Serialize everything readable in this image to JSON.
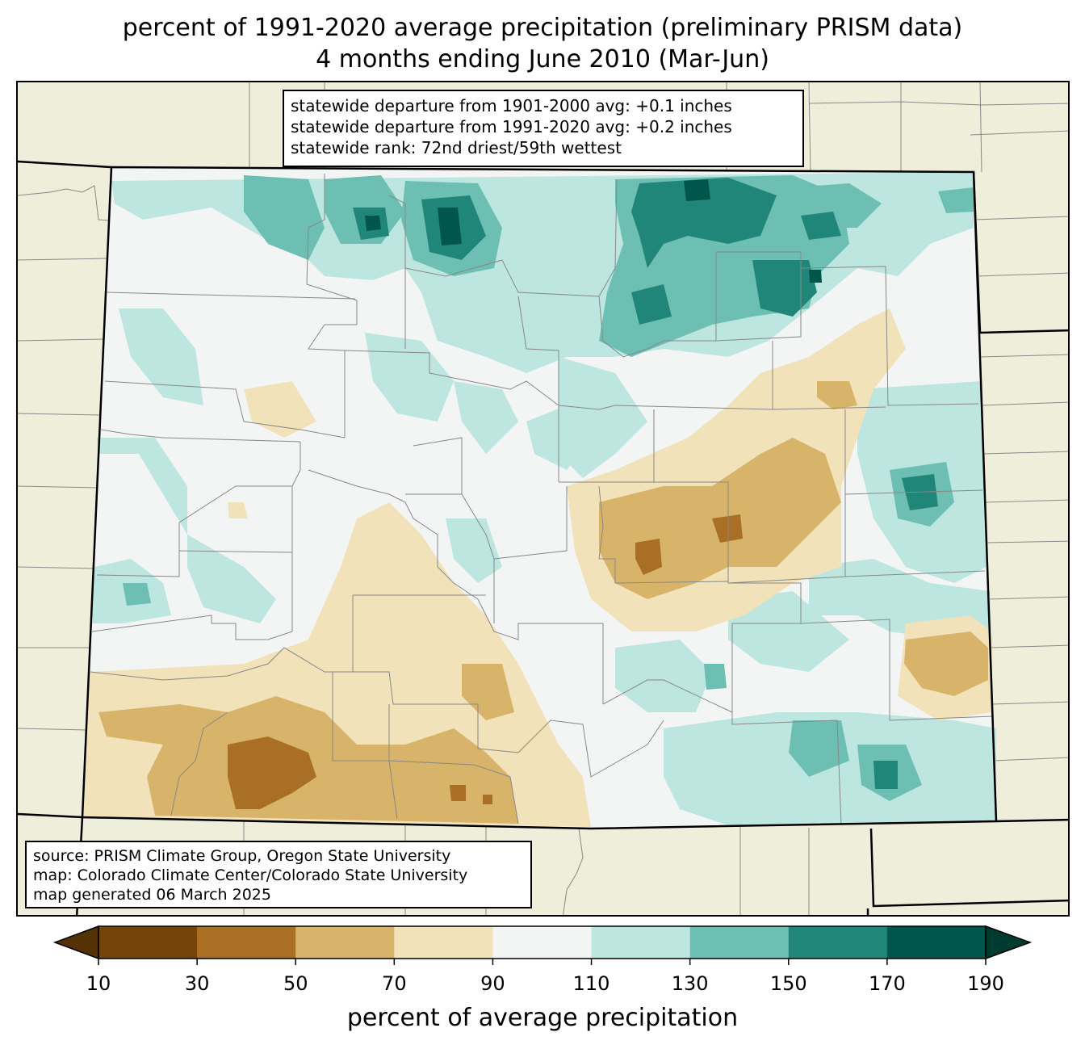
{
  "title": {
    "line1": "percent of 1991-2020 average precipitation (preliminary PRISM data)",
    "line2": "4 months ending June 2010 (Mar-Jun)"
  },
  "stats": {
    "line1": "statewide departure from 1901-2000 avg: +0.1 inches",
    "line2": "statewide departure from 1991-2020 avg: +0.2 inches",
    "line3": "statewide rank: 72nd driest/59th wettest"
  },
  "source": {
    "line1": "source: PRISM Climate Group, Oregon State University",
    "line2": "map: Colorado Climate Center/Colorado State University",
    "line3": "map generated 06 March 2025"
  },
  "colorbar": {
    "label": "percent of average precipitation",
    "ticks": [
      "10",
      "30",
      "50",
      "70",
      "90",
      "110",
      "130",
      "150",
      "170",
      "190"
    ],
    "colors": [
      "#744408",
      "#a96f24",
      "#d8b36a",
      "#f2e2ba",
      "#f3f5f5",
      "#bde6e0",
      "#6cbfb2",
      "#208679",
      "#00564a"
    ],
    "under_color": "#553205",
    "over_color": "#003b30"
  },
  "colors": {
    "background": "#efeedb",
    "state_fill": "#f3f5f5",
    "state_border": "#000000",
    "county_border": "#888888"
  }
}
